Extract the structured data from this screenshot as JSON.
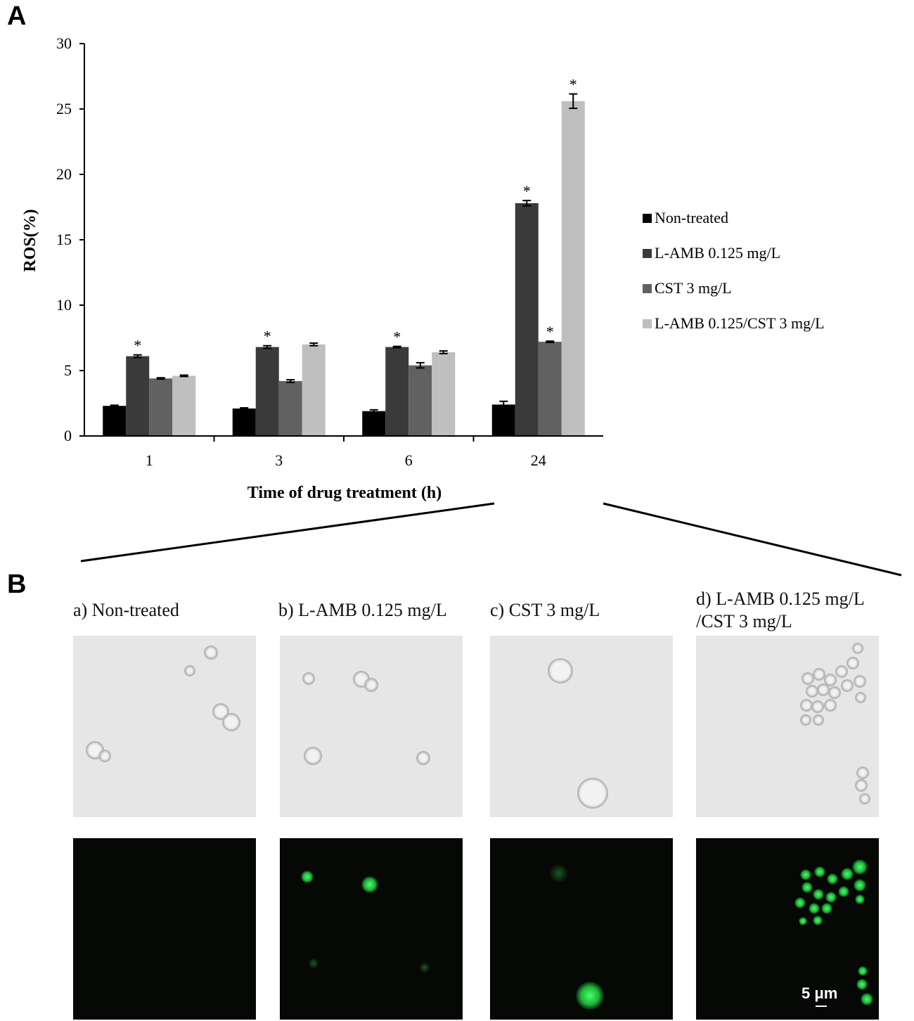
{
  "panel_labels": {
    "a": "A",
    "b": "B"
  },
  "chart_data": {
    "type": "bar",
    "title": "",
    "xlabel": "Time of drug treatment (h)",
    "ylabel": "ROS(%)",
    "ylim": [
      0,
      30
    ],
    "yticks": [
      "0",
      "5",
      "10",
      "15",
      "20",
      "25",
      "30"
    ],
    "categories": [
      "1",
      "3",
      "6",
      "24"
    ],
    "legend_position": "right",
    "series": [
      {
        "name": "Non-treated",
        "color": "#000000",
        "values": [
          2.3,
          2.1,
          1.9,
          2.4
        ],
        "errors": [
          0.05,
          0.05,
          0.1,
          0.25
        ],
        "significant": [
          false,
          false,
          false,
          false
        ]
      },
      {
        "name": "L-AMB 0.125 mg/L",
        "color": "#3a3a3a",
        "values": [
          6.1,
          6.8,
          6.8,
          17.8
        ],
        "errors": [
          0.1,
          0.1,
          0.05,
          0.2
        ],
        "significant": [
          true,
          true,
          true,
          true
        ]
      },
      {
        "name": "CST 3 mg/L",
        "color": "#616161",
        "values": [
          4.4,
          4.2,
          5.4,
          7.2
        ],
        "errors": [
          0.05,
          0.1,
          0.2,
          0.05
        ],
        "significant": [
          false,
          false,
          false,
          true
        ]
      },
      {
        "name": "L-AMB 0.125/CST 3 mg/L",
        "color": "#bfbfbf",
        "values": [
          4.6,
          7.0,
          6.4,
          25.6
        ],
        "errors": [
          0.05,
          0.1,
          0.1,
          0.55
        ],
        "significant": [
          false,
          false,
          false,
          true
        ]
      }
    ],
    "significance_marker": "*"
  },
  "panel_b": {
    "labels": {
      "a": "a) Non-treated",
      "b": "b) L-AMB 0.125 mg/L",
      "c": "c) CST 3 mg/L",
      "d_line1": "d) L-AMB 0.125 mg/L",
      "d_line2": "/CST 3 mg/L"
    },
    "scale_bar": "5 μm"
  }
}
